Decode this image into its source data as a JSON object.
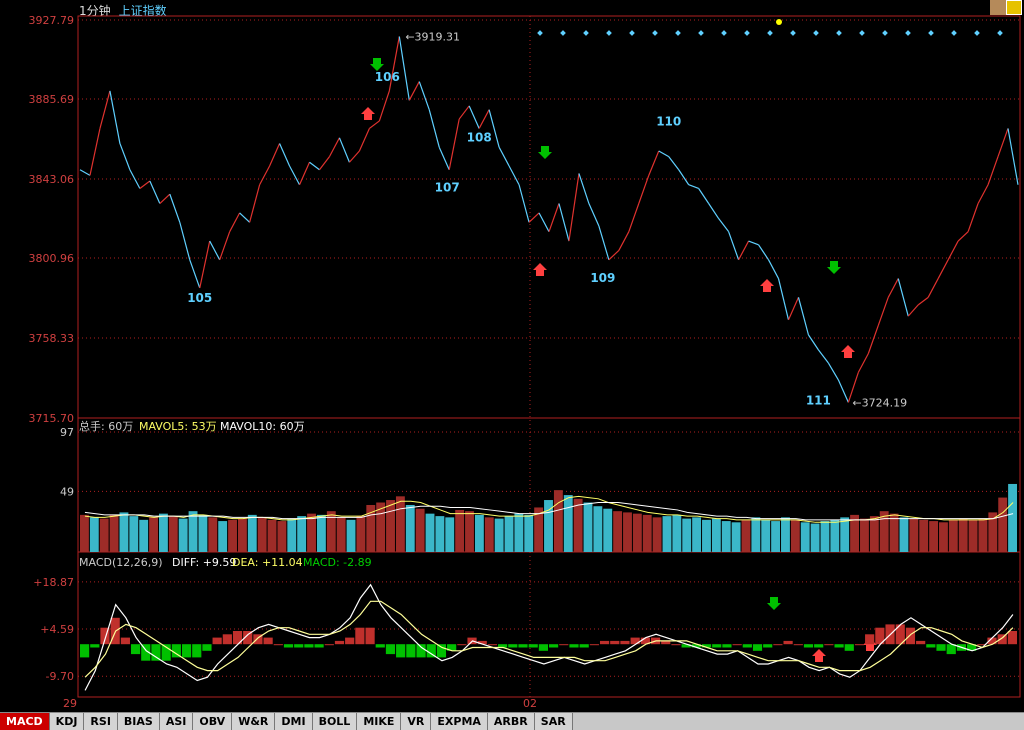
{
  "header": {
    "period": "1分钟",
    "index_name": "上证指数"
  },
  "price_panel": {
    "y_ticks": [
      "3927.79",
      "3885.69",
      "3843.06",
      "3800.96",
      "3758.33",
      "3715.70"
    ],
    "high_label": "3919.31",
    "low_label": "3724.19",
    "wave_labels": [
      "105",
      "106",
      "107",
      "108",
      "109",
      "110",
      "111"
    ]
  },
  "volume_panel": {
    "legend_total": "总手: 60万",
    "legend_ma5": "MAVOL5: 53万",
    "legend_ma10": "MAVOL10: 60万",
    "y_ticks": [
      "97",
      "49"
    ]
  },
  "macd_panel": {
    "legend_name": "MACD(12,26,9)",
    "legend_diff": "DIFF: +9.59",
    "legend_dea": "DEA: +11.04",
    "legend_macd": "MACD: -2.89",
    "y_ticks": [
      "+18.87",
      "+4.59",
      "-9.70"
    ]
  },
  "x_axis": {
    "labels": [
      "29",
      "02"
    ]
  },
  "tabs": [
    "MACD",
    "KDJ",
    "RSI",
    "BIAS",
    "ASI",
    "OBV",
    "W&R",
    "DMI",
    "BOLL",
    "MIKE",
    "VR",
    "EXPMA",
    "ARBR",
    "SAR"
  ],
  "colors": {
    "up": "#e0322e",
    "down": "#5fd0ff",
    "axis": "#b02020",
    "accent_yellow": "#ffff00",
    "macd_green": "#00c000"
  },
  "chart_data": [
    {
      "type": "line",
      "title": "上证指数 1分钟",
      "ylim": [
        3715.7,
        3927.79
      ],
      "x": [
        0,
        10,
        20,
        30,
        40,
        50,
        60,
        70,
        80,
        90,
        100,
        110,
        120,
        130,
        140,
        150,
        160,
        170,
        180,
        190,
        200,
        210,
        220,
        230,
        240,
        250,
        260,
        270,
        280,
        290,
        300,
        310,
        320,
        330,
        340,
        350,
        360,
        370,
        380,
        390,
        400,
        410,
        420,
        430,
        440,
        450,
        460,
        470,
        480,
        490,
        500,
        510,
        520,
        530,
        540,
        550,
        560,
        570,
        580,
        590,
        600,
        610,
        620,
        630,
        640,
        650,
        660,
        670,
        680,
        690,
        700,
        710,
        720,
        730,
        740,
        750,
        760,
        770,
        780,
        790,
        800,
        810,
        820,
        830,
        840,
        850,
        860,
        870,
        880,
        890,
        900,
        910,
        920,
        930,
        940
      ],
      "values": [
        3848,
        3845,
        3870,
        3890,
        3862,
        3848,
        3838,
        3842,
        3830,
        3835,
        3820,
        3800,
        3785,
        3810,
        3800,
        3815,
        3825,
        3820,
        3840,
        3850,
        3862,
        3850,
        3840,
        3852,
        3848,
        3855,
        3865,
        3852,
        3858,
        3870,
        3874,
        3890,
        3919,
        3885,
        3895,
        3880,
        3860,
        3848,
        3875,
        3882,
        3870,
        3880,
        3860,
        3850,
        3840,
        3820,
        3825,
        3815,
        3830,
        3810,
        3846,
        3830,
        3818,
        3800,
        3805,
        3815,
        3830,
        3845,
        3858,
        3855,
        3848,
        3840,
        3838,
        3830,
        3822,
        3815,
        3800,
        3810,
        3808,
        3800,
        3790,
        3768,
        3780,
        3760,
        3752,
        3745,
        3736,
        3724,
        3740,
        3750,
        3765,
        3780,
        3790,
        3770,
        3776,
        3780,
        3790,
        3800,
        3810,
        3815,
        3830,
        3840,
        3855,
        3870,
        3840
      ]
    },
    {
      "type": "bar",
      "title": "",
      "ylim": [
        0,
        97
      ],
      "series": [
        {
          "name": "总手",
          "values": [
            30,
            28,
            27,
            30,
            32,
            29,
            26,
            28,
            31,
            29,
            27,
            33,
            30,
            28,
            25,
            26,
            27,
            30,
            28,
            26,
            25,
            27,
            29,
            31,
            30,
            33,
            28,
            26,
            29,
            38,
            40,
            42,
            45,
            38,
            35,
            31,
            29,
            28,
            34,
            33,
            30,
            28,
            27,
            29,
            31,
            30,
            36,
            42,
            50,
            46,
            43,
            40,
            37,
            35,
            33,
            32,
            31,
            30,
            28,
            29,
            30,
            27,
            28,
            26,
            27,
            25,
            24,
            26,
            28,
            26,
            25,
            28,
            26,
            24,
            23,
            25,
            26,
            28,
            30,
            27,
            29,
            33,
            31,
            28,
            27,
            26,
            25,
            24,
            26,
            27,
            26,
            27,
            32,
            44,
            55
          ]
        },
        {
          "name": "MAVOL5",
          "values": [
            29,
            28,
            28,
            29,
            30,
            30,
            29,
            28,
            29,
            29,
            28,
            30,
            30,
            29,
            28,
            27,
            27,
            28,
            28,
            27,
            26,
            26,
            27,
            28,
            29,
            30,
            29,
            29,
            29,
            32,
            35,
            38,
            41,
            41,
            40,
            37,
            34,
            31,
            31,
            31,
            31,
            30,
            29,
            29,
            29,
            29,
            31,
            34,
            40,
            44,
            45,
            44,
            43,
            40,
            38,
            36,
            34,
            32,
            31,
            30,
            30,
            29,
            29,
            28,
            27,
            27,
            26,
            26,
            26,
            26,
            26,
            26,
            26,
            25,
            24,
            24,
            24,
            25,
            26,
            26,
            27,
            29,
            30,
            29,
            28,
            27,
            27,
            26,
            26,
            26,
            26,
            26,
            27,
            32,
            40
          ]
        },
        {
          "name": "MAVOL10",
          "values": [
            32,
            31,
            30,
            30,
            30,
            30,
            30,
            29,
            29,
            29,
            29,
            29,
            29,
            29,
            29,
            28,
            28,
            28,
            28,
            28,
            27,
            27,
            27,
            27,
            28,
            28,
            28,
            28,
            28,
            30,
            31,
            33,
            35,
            36,
            37,
            37,
            37,
            36,
            36,
            36,
            35,
            34,
            33,
            32,
            31,
            31,
            31,
            32,
            34,
            36,
            38,
            39,
            40,
            40,
            40,
            39,
            38,
            37,
            36,
            35,
            34,
            32,
            31,
            30,
            29,
            29,
            28,
            28,
            27,
            27,
            27,
            27,
            27,
            26,
            26,
            26,
            26,
            26,
            26,
            26,
            26,
            27,
            27,
            27,
            27,
            27,
            27,
            27,
            27,
            27,
            27,
            27,
            27,
            29,
            31
          ]
        }
      ]
    },
    {
      "type": "line",
      "title": "MACD(12,26,9)",
      "ylim": [
        -16,
        24
      ],
      "series": [
        {
          "name": "DIFF",
          "values": [
            -14,
            -8,
            2,
            12,
            8,
            2,
            -2,
            -4,
            -6,
            -7,
            -9,
            -11,
            -10,
            -6,
            -3,
            0,
            3,
            5,
            6,
            5,
            4,
            3,
            2,
            2,
            3,
            5,
            8,
            14,
            18,
            12,
            8,
            5,
            2,
            -1,
            -3,
            -5,
            -4,
            -2,
            1,
            0,
            -1,
            -2,
            -3,
            -4,
            -5,
            -6,
            -5,
            -4,
            -5,
            -6,
            -5,
            -4,
            -3,
            -2,
            0,
            2,
            3,
            2,
            1,
            0,
            -1,
            -2,
            -3,
            -3,
            -2,
            -4,
            -6,
            -6,
            -5,
            -4,
            -5,
            -7,
            -8,
            -7,
            -9,
            -10,
            -8,
            -4,
            0,
            3,
            6,
            8,
            6,
            4,
            2,
            0,
            -1,
            -2,
            -1,
            2,
            5,
            9
          ]
        },
        {
          "name": "DEA",
          "values": [
            -10,
            -7,
            -3,
            4,
            6,
            5,
            3,
            1,
            -1,
            -3,
            -5,
            -7,
            -8,
            -8,
            -6,
            -4,
            -1,
            2,
            4,
            5,
            5,
            4,
            3,
            3,
            3,
            4,
            6,
            9,
            13,
            13,
            11,
            9,
            6,
            3,
            1,
            -1,
            -2,
            -2,
            -1,
            -1,
            -1,
            -1,
            -2,
            -3,
            -4,
            -4,
            -4,
            -4,
            -4,
            -5,
            -5,
            -5,
            -4,
            -3,
            -2,
            0,
            1,
            1,
            1,
            1,
            0,
            -1,
            -2,
            -2,
            -2,
            -3,
            -4,
            -5,
            -5,
            -5,
            -5,
            -6,
            -7,
            -7,
            -8,
            -8,
            -8,
            -7,
            -5,
            -3,
            0,
            3,
            5,
            5,
            4,
            3,
            1,
            0,
            -1,
            0,
            2,
            5
          ]
        },
        {
          "name": "MACD",
          "values": [
            -4,
            -1,
            5,
            8,
            2,
            -3,
            -5,
            -5,
            -5,
            -4,
            -4,
            -4,
            -2,
            2,
            3,
            4,
            4,
            3,
            2,
            0,
            -1,
            -1,
            -1,
            -1,
            0,
            1,
            2,
            5,
            5,
            -1,
            -3,
            -4,
            -4,
            -4,
            -4,
            -4,
            -2,
            0,
            2,
            1,
            0,
            -1,
            -1,
            -1,
            -1,
            -2,
            -1,
            0,
            -1,
            -1,
            0,
            1,
            1,
            1,
            2,
            2,
            2,
            1,
            0,
            -1,
            -1,
            -1,
            -1,
            -1,
            0,
            -1,
            -2,
            -1,
            0,
            1,
            0,
            -1,
            -1,
            0,
            -1,
            -2,
            0,
            3,
            5,
            6,
            6,
            5,
            1,
            -1,
            -2,
            -3,
            -2,
            -2,
            0,
            2,
            3,
            4
          ]
        }
      ]
    }
  ]
}
